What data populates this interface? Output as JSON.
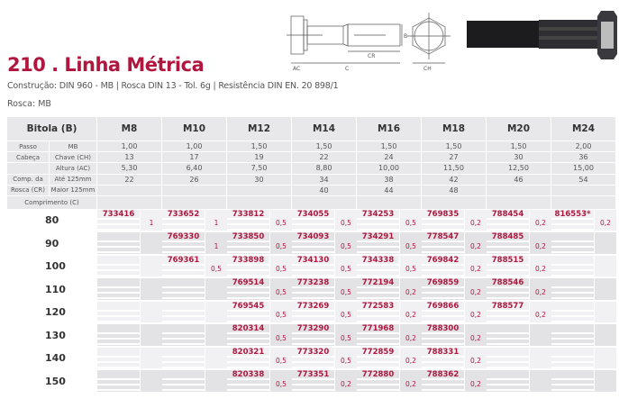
{
  "title": "210 . Linha Métrica",
  "subtitle": "Construção: DIN 960 - MB | Rosca DIN 13 - Tol. 6g | Resistência DIN EN. 20 898/1",
  "thread": "Rosca: MB",
  "diagram_labels": {
    "ac": "AC",
    "c": "C",
    "cr": "CR",
    "b": "B",
    "ch": "CH"
  },
  "colors": {
    "accent": "#b0163e",
    "cell": "#e8e8ea"
  },
  "table": {
    "header": "Bitola (B)",
    "sizes": [
      "M8",
      "M10",
      "M12",
      "M14",
      "M16",
      "M18",
      "M20",
      "M24"
    ],
    "specs": [
      {
        "group": "Passo",
        "sub": "MB",
        "values": [
          "1,00",
          "1,00",
          "1,50",
          "1,50",
          "1,50",
          "1,50",
          "1,50",
          "2,00"
        ]
      },
      {
        "group": "Cabeça",
        "sub": "Chave (CH)",
        "values": [
          "13",
          "17",
          "19",
          "22",
          "24",
          "27",
          "30",
          "36"
        ]
      },
      {
        "group": "",
        "sub": "Altura (AC)",
        "values": [
          "5,30",
          "6,40",
          "7,50",
          "8,80",
          "10,00",
          "11,50",
          "12,50",
          "15,00"
        ]
      },
      {
        "group": "Comp. da",
        "sub": "Até 125mm",
        "values": [
          "22",
          "26",
          "30",
          "34",
          "38",
          "42",
          "46",
          "54"
        ]
      },
      {
        "group": "Rosca (CR)",
        "sub": "Maior 125mm",
        "values": [
          "",
          "",
          "",
          "40",
          "44",
          "48",
          "",
          ""
        ]
      }
    ],
    "length_label": "Comprimento (C)",
    "rows": [
      {
        "length": "80",
        "cells": [
          [
            "733416",
            "1"
          ],
          [
            "733652",
            "1"
          ],
          [
            "733812",
            "0,5"
          ],
          [
            "734055",
            "0,5"
          ],
          [
            "734253",
            "0,5"
          ],
          [
            "769835",
            "0,2"
          ],
          [
            "788454",
            "0,2"
          ],
          [
            "816553*",
            "0,2"
          ]
        ]
      },
      {
        "length": "90",
        "cells": [
          [
            "",
            ""
          ],
          [
            "769330",
            "1"
          ],
          [
            "733850",
            "0,5"
          ],
          [
            "734093",
            "0,5"
          ],
          [
            "734291",
            "0,5"
          ],
          [
            "778547",
            "0,2"
          ],
          [
            "788485",
            "0,2"
          ],
          [
            "",
            ""
          ]
        ]
      },
      {
        "length": "100",
        "cells": [
          [
            "",
            ""
          ],
          [
            "769361",
            "0,5"
          ],
          [
            "733898",
            "0,5"
          ],
          [
            "734130",
            "0,5"
          ],
          [
            "734338",
            "0,5"
          ],
          [
            "769842",
            "0,2"
          ],
          [
            "788515",
            "0,2"
          ],
          [
            "",
            ""
          ]
        ]
      },
      {
        "length": "110",
        "cells": [
          [
            "",
            ""
          ],
          [
            "",
            ""
          ],
          [
            "769514",
            "0,5"
          ],
          [
            "773238",
            "0,5"
          ],
          [
            "772194",
            "0,2"
          ],
          [
            "769859",
            "0,2"
          ],
          [
            "788546",
            "0,2"
          ],
          [
            "",
            ""
          ]
        ]
      },
      {
        "length": "120",
        "cells": [
          [
            "",
            ""
          ],
          [
            "",
            ""
          ],
          [
            "769545",
            "0,5"
          ],
          [
            "773269",
            "0,5"
          ],
          [
            "772583",
            "0,2"
          ],
          [
            "769866",
            "0,2"
          ],
          [
            "788577",
            "0,2"
          ],
          [
            "",
            ""
          ]
        ]
      },
      {
        "length": "130",
        "cells": [
          [
            "",
            ""
          ],
          [
            "",
            ""
          ],
          [
            "820314",
            "0,5"
          ],
          [
            "773290",
            "0,5"
          ],
          [
            "771968",
            "0,2"
          ],
          [
            "788300",
            "0,2"
          ],
          [
            "",
            ""
          ],
          [
            "",
            ""
          ]
        ]
      },
      {
        "length": "140",
        "cells": [
          [
            "",
            ""
          ],
          [
            "",
            ""
          ],
          [
            "820321",
            "0,5"
          ],
          [
            "773320",
            "0,5"
          ],
          [
            "772859",
            "0,2"
          ],
          [
            "788331",
            "0,2"
          ],
          [
            "",
            ""
          ],
          [
            "",
            ""
          ]
        ]
      },
      {
        "length": "150",
        "cells": [
          [
            "",
            ""
          ],
          [
            "",
            ""
          ],
          [
            "820338",
            "0,5"
          ],
          [
            "773351",
            "0,2"
          ],
          [
            "772880",
            "0,2"
          ],
          [
            "788362",
            "0,2"
          ],
          [
            "",
            ""
          ],
          [
            "",
            ""
          ]
        ]
      }
    ]
  }
}
